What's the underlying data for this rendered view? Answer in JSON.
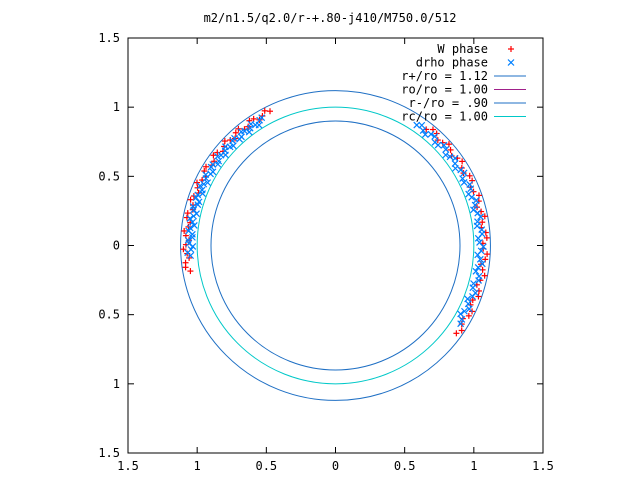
{
  "chart_data": {
    "type": "scatter",
    "title": "m2/n1.5/q2.0/r-+.80-j410/M750.0/512",
    "xlabel": "",
    "ylabel": "",
    "xlim": [
      -1.5,
      1.5
    ],
    "ylim": [
      -1.5,
      1.5
    ],
    "x_ticks": [
      {
        "value": -1.5,
        "label": "1.5"
      },
      {
        "value": -1.0,
        "label": "1"
      },
      {
        "value": -0.5,
        "label": "0.5"
      },
      {
        "value": 0.0,
        "label": "0"
      },
      {
        "value": 0.5,
        "label": "0.5"
      },
      {
        "value": 1.0,
        "label": "1"
      },
      {
        "value": 1.5,
        "label": "1.5"
      }
    ],
    "y_ticks": [
      {
        "value": 1.5,
        "label": "1.5"
      },
      {
        "value": 1.0,
        "label": "1"
      },
      {
        "value": 0.5,
        "label": "0.5"
      },
      {
        "value": 0.0,
        "label": "0"
      },
      {
        "value": -0.5,
        "label": "0.5"
      },
      {
        "value": -1.0,
        "label": "1"
      },
      {
        "value": -1.5,
        "label": "1.5"
      }
    ],
    "grid": false,
    "legend_position": "top-right",
    "series": [
      {
        "name": "W phase",
        "kind": "points",
        "marker": "plus",
        "color": "#ff0000",
        "arc_angles_deg": [
          [
            116,
            190
          ],
          [
            -36,
            52
          ]
        ],
        "arc_radius": [
          1.06,
          1.1
        ],
        "count_per_arc": 44
      },
      {
        "name": "drho phase",
        "kind": "points",
        "marker": "cross",
        "color": "#0080ff",
        "arc_angles_deg": [
          [
            120,
            184
          ],
          [
            -32,
            56
          ]
        ],
        "arc_radius": [
          1.03,
          1.07
        ],
        "count_per_arc": 54
      }
    ],
    "circles": [
      {
        "name": "r+/ro = 1.12",
        "radius": 1.12,
        "color": "#1e6fc4"
      },
      {
        "name": "ro/ro = 1.00",
        "radius": 1.0,
        "color": "#a0208a",
        "hidden": true
      },
      {
        "name": "r-/ro = .90",
        "radius": 0.9,
        "color": "#1e6fc4"
      },
      {
        "name": "rc/ro = 1.00",
        "radius": 1.0,
        "color": "#00c8c8"
      }
    ]
  }
}
